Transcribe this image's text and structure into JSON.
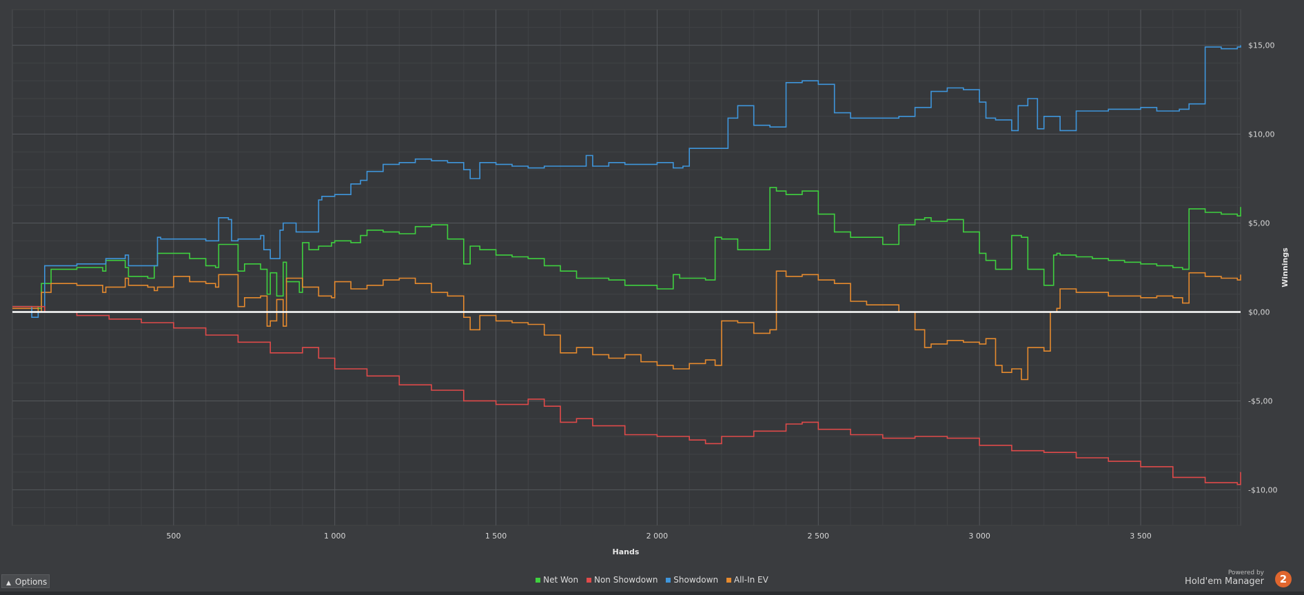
{
  "chart_data": {
    "type": "line",
    "xlabel": "Hands",
    "ylabel": "Winnings",
    "xlim": [
      0,
      3810
    ],
    "ylim": [
      -12,
      17
    ],
    "x_ticks": [
      500,
      1000,
      1500,
      2000,
      2500,
      3000,
      3500
    ],
    "x_tick_labels": [
      "500",
      "1 000",
      "1 500",
      "2 000",
      "2 500",
      "3 000",
      "3 500"
    ],
    "y_ticks": [
      15,
      10,
      5,
      0,
      -5,
      -10
    ],
    "y_tick_labels": [
      "$15,00",
      "$10,00",
      "$5,00",
      "$0,00",
      "-$5,00",
      "-$10,00"
    ],
    "grid": true,
    "legend_position": "bottom-center",
    "series": [
      {
        "name": "Net Won",
        "color": "#3fd13f",
        "x": [
          0,
          80,
          90,
          120,
          200,
          280,
          290,
          350,
          360,
          420,
          440,
          450,
          550,
          600,
          630,
          640,
          700,
          720,
          770,
          790,
          800,
          820,
          840,
          850,
          890,
          900,
          920,
          950,
          990,
          1000,
          1050,
          1080,
          1100,
          1150,
          1200,
          1250,
          1300,
          1350,
          1400,
          1420,
          1450,
          1500,
          1550,
          1600,
          1650,
          1700,
          1750,
          1800,
          1850,
          1900,
          2000,
          2050,
          2070,
          2150,
          2180,
          2200,
          2250,
          2300,
          2350,
          2370,
          2400,
          2450,
          2500,
          2550,
          2600,
          2650,
          2700,
          2750,
          2800,
          2830,
          2850,
          2900,
          2950,
          3000,
          3020,
          3050,
          3100,
          3130,
          3150,
          3200,
          3230,
          3240,
          3250,
          3300,
          3350,
          3400,
          3450,
          3500,
          3550,
          3600,
          3630,
          3650,
          3700,
          3750,
          3800,
          3810
        ],
        "values": [
          0.3,
          0.2,
          1.6,
          2.4,
          2.5,
          2.3,
          2.9,
          2.5,
          2.0,
          1.9,
          2.6,
          3.3,
          3.0,
          2.6,
          2.5,
          3.8,
          2.3,
          2.7,
          2.4,
          1.0,
          2.2,
          0.9,
          2.8,
          1.7,
          1.1,
          3.9,
          3.5,
          3.7,
          3.9,
          4.0,
          3.9,
          4.3,
          4.6,
          4.5,
          4.4,
          4.8,
          4.9,
          4.1,
          2.7,
          3.7,
          3.5,
          3.2,
          3.1,
          3.0,
          2.6,
          2.3,
          1.9,
          1.9,
          1.8,
          1.5,
          1.3,
          2.1,
          1.9,
          1.8,
          4.2,
          4.1,
          3.5,
          3.5,
          7.0,
          6.8,
          6.6,
          6.8,
          5.5,
          4.5,
          4.2,
          4.2,
          3.8,
          4.9,
          5.2,
          5.3,
          5.1,
          5.2,
          4.5,
          3.3,
          2.9,
          2.4,
          4.3,
          4.2,
          2.4,
          1.5,
          3.2,
          3.3,
          3.2,
          3.1,
          3.0,
          2.9,
          2.8,
          2.7,
          2.6,
          2.5,
          2.4,
          5.8,
          5.6,
          5.5,
          5.4,
          5.9
        ]
      },
      {
        "name": "Non Showdown",
        "color": "#e04a4a",
        "x": [
          0,
          100,
          200,
          300,
          400,
          500,
          600,
          700,
          800,
          900,
          950,
          1000,
          1100,
          1200,
          1300,
          1400,
          1500,
          1600,
          1650,
          1700,
          1750,
          1800,
          1900,
          2000,
          2100,
          2150,
          2200,
          2300,
          2400,
          2450,
          2500,
          2600,
          2700,
          2800,
          2900,
          3000,
          3100,
          3200,
          3300,
          3400,
          3500,
          3600,
          3700,
          3800,
          3810
        ],
        "values": [
          0.3,
          0.0,
          -0.2,
          -0.4,
          -0.6,
          -0.9,
          -1.3,
          -1.7,
          -2.3,
          -2.0,
          -2.6,
          -3.2,
          -3.6,
          -4.1,
          -4.4,
          -5.0,
          -5.2,
          -4.9,
          -5.3,
          -6.2,
          -6.0,
          -6.4,
          -6.9,
          -7.0,
          -7.2,
          -7.4,
          -7.0,
          -6.7,
          -6.3,
          -6.2,
          -6.6,
          -6.9,
          -7.1,
          -7.0,
          -7.1,
          -7.5,
          -7.8,
          -7.9,
          -8.2,
          -8.4,
          -8.7,
          -9.3,
          -9.6,
          -9.7,
          -9.0
        ]
      },
      {
        "name": "Showdown",
        "color": "#3f96dc",
        "x": [
          0,
          50,
          60,
          80,
          100,
          200,
          290,
          300,
          350,
          360,
          450,
          460,
          600,
          630,
          640,
          670,
          680,
          700,
          770,
          780,
          800,
          830,
          840,
          880,
          900,
          950,
          960,
          1000,
          1050,
          1080,
          1100,
          1150,
          1200,
          1250,
          1300,
          1350,
          1400,
          1420,
          1450,
          1500,
          1550,
          1600,
          1650,
          1700,
          1750,
          1780,
          1800,
          1850,
          1900,
          2000,
          2050,
          2080,
          2100,
          2150,
          2200,
          2220,
          2250,
          2300,
          2350,
          2400,
          2450,
          2500,
          2550,
          2600,
          2650,
          2700,
          2750,
          2800,
          2850,
          2900,
          2950,
          3000,
          3020,
          3050,
          3100,
          3120,
          3150,
          3180,
          3200,
          3250,
          3300,
          3400,
          3500,
          3550,
          3600,
          3620,
          3650,
          3700,
          3750,
          3800,
          3810
        ],
        "values": [
          0.3,
          0.3,
          -0.3,
          0.0,
          2.6,
          2.7,
          3.0,
          3.0,
          3.2,
          2.6,
          4.2,
          4.1,
          4.0,
          4.0,
          5.3,
          5.2,
          4.0,
          4.1,
          4.3,
          3.5,
          3.0,
          4.6,
          5.0,
          4.5,
          4.5,
          6.3,
          6.5,
          6.6,
          7.2,
          7.4,
          7.9,
          8.3,
          8.4,
          8.6,
          8.5,
          8.4,
          8.0,
          7.5,
          8.4,
          8.3,
          8.2,
          8.1,
          8.2,
          8.2,
          8.2,
          8.8,
          8.2,
          8.4,
          8.3,
          8.4,
          8.1,
          8.2,
          9.2,
          9.2,
          9.2,
          10.9,
          11.6,
          10.5,
          10.4,
          12.9,
          13.0,
          12.8,
          11.2,
          10.9,
          10.9,
          10.9,
          11.0,
          11.5,
          12.4,
          12.6,
          12.5,
          11.8,
          10.9,
          10.8,
          10.2,
          11.6,
          12.0,
          10.3,
          11.0,
          10.2,
          11.3,
          11.4,
          11.5,
          11.3,
          11.3,
          11.4,
          11.7,
          14.9,
          14.8,
          14.9,
          15.0
        ]
      },
      {
        "name": "All-In EV",
        "color": "#e68a2e",
        "x": [
          0,
          80,
          90,
          120,
          200,
          280,
          290,
          350,
          360,
          420,
          440,
          450,
          500,
          550,
          600,
          630,
          640,
          700,
          720,
          770,
          790,
          800,
          820,
          840,
          850,
          900,
          950,
          990,
          1000,
          1050,
          1100,
          1150,
          1200,
          1250,
          1300,
          1350,
          1400,
          1420,
          1450,
          1500,
          1550,
          1600,
          1650,
          1700,
          1750,
          1800,
          1850,
          1900,
          1950,
          2000,
          2050,
          2100,
          2150,
          2180,
          2200,
          2250,
          2300,
          2350,
          2370,
          2400,
          2450,
          2500,
          2550,
          2600,
          2650,
          2700,
          2750,
          2800,
          2830,
          2850,
          2900,
          2950,
          3000,
          3020,
          3050,
          3070,
          3100,
          3130,
          3150,
          3200,
          3220,
          3240,
          3250,
          3300,
          3400,
          3500,
          3550,
          3600,
          3630,
          3650,
          3700,
          3750,
          3800,
          3810
        ],
        "values": [
          0.2,
          0.0,
          1.1,
          1.6,
          1.5,
          1.1,
          1.4,
          1.9,
          1.5,
          1.4,
          1.2,
          1.4,
          2.0,
          1.7,
          1.6,
          1.4,
          2.1,
          0.3,
          0.8,
          0.9,
          -0.8,
          -0.5,
          0.7,
          -0.8,
          1.9,
          1.4,
          0.9,
          0.8,
          1.7,
          1.3,
          1.5,
          1.8,
          1.9,
          1.6,
          1.1,
          0.9,
          -0.3,
          -1.0,
          -0.2,
          -0.5,
          -0.6,
          -0.7,
          -1.3,
          -2.3,
          -2.0,
          -2.4,
          -2.6,
          -2.4,
          -2.8,
          -3.0,
          -3.2,
          -2.9,
          -2.7,
          -3.0,
          -0.5,
          -0.6,
          -1.2,
          -1.0,
          2.3,
          2.0,
          2.1,
          1.8,
          1.6,
          0.6,
          0.4,
          0.4,
          0.0,
          -1.0,
          -2.0,
          -1.8,
          -1.6,
          -1.7,
          -1.8,
          -1.5,
          -3.0,
          -3.4,
          -3.2,
          -3.8,
          -2.0,
          -2.2,
          0.0,
          0.2,
          1.3,
          1.1,
          0.9,
          0.8,
          0.9,
          0.8,
          0.5,
          2.2,
          2.0,
          1.9,
          1.8,
          2.1
        ]
      }
    ],
    "zero_line": true
  },
  "ui": {
    "options_label": "Options",
    "powered_by": "Powered by",
    "brand": "Hold'em Manager",
    "logo_text": "2"
  }
}
